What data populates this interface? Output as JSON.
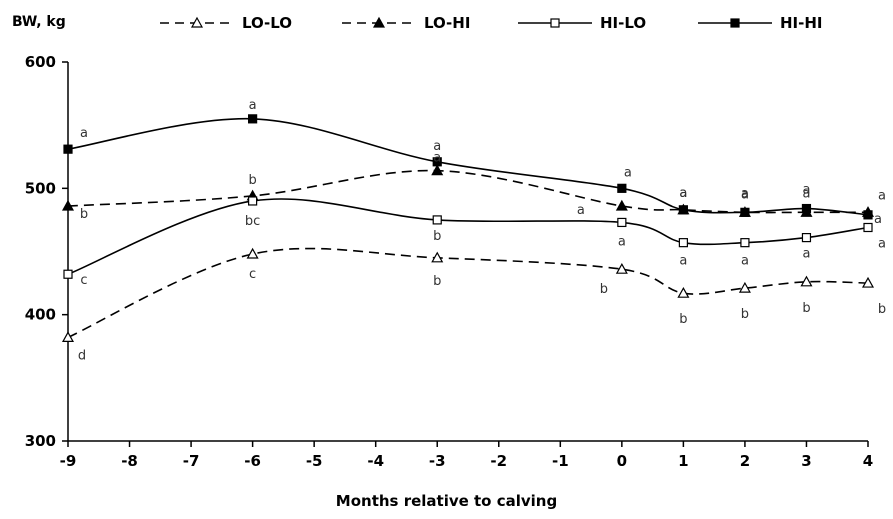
{
  "chart_data": {
    "type": "line",
    "title": "",
    "ylabel": "BW, kg",
    "xlabel": "Months relative to calving",
    "x": [
      -9,
      -6,
      -3,
      0,
      1,
      2,
      3,
      4
    ],
    "xticks": [
      "-9",
      "-8",
      "-7",
      "-6",
      "-5",
      "-4",
      "-3",
      "-2",
      "-1",
      "0",
      "1",
      "2",
      "3",
      "4"
    ],
    "xlim": [
      -9,
      4
    ],
    "yticks": [
      "300",
      "400",
      "500",
      "600"
    ],
    "ylim": [
      300,
      600
    ],
    "grid": false,
    "legend_position": "top",
    "series": [
      {
        "name": "LO-LO",
        "values": [
          382,
          448,
          445,
          436,
          417,
          421,
          426,
          425
        ],
        "marker": "triangle-open",
        "dashed": true,
        "letters": [
          "d",
          "c",
          "b",
          "b",
          "b",
          "b",
          "b",
          "b"
        ]
      },
      {
        "name": "LO-HI",
        "values": [
          486,
          494,
          514,
          486,
          483,
          481,
          481,
          481
        ],
        "marker": "triangle-filled",
        "dashed": true,
        "letters": [
          "b",
          "b",
          "a",
          "a",
          "a",
          "a",
          "a",
          "a"
        ]
      },
      {
        "name": "HI-LO",
        "values": [
          432,
          490,
          475,
          473,
          457,
          457,
          461,
          469
        ],
        "marker": "square-open",
        "dashed": false,
        "letters": [
          "c",
          "bc",
          "b",
          "a",
          "a",
          "a",
          "a",
          "a"
        ]
      },
      {
        "name": "HI-HI",
        "values": [
          531,
          555,
          521,
          500,
          483,
          481,
          484,
          479
        ],
        "marker": "square-filled",
        "dashed": false,
        "letters": [
          "a",
          "a",
          "a",
          "a",
          "a",
          "a",
          "a",
          "a"
        ]
      }
    ]
  }
}
